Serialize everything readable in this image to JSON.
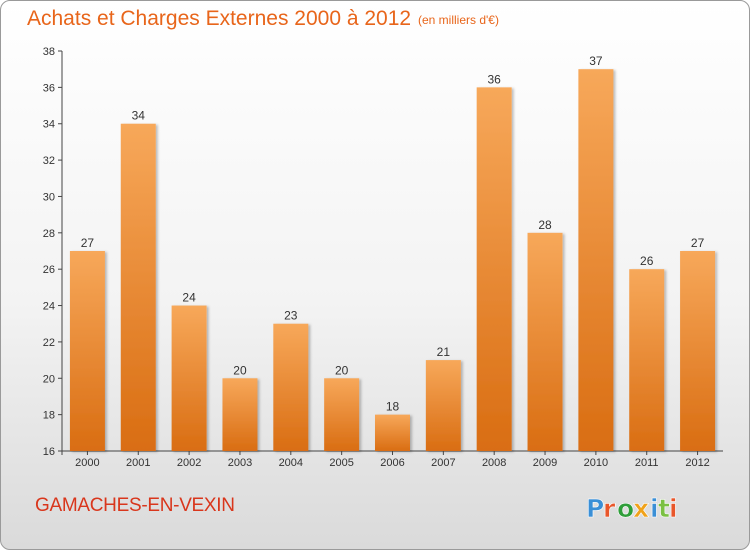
{
  "header": {
    "title": "Achats et Charges Externes 2000 à 2012",
    "unit": "(en milliers d'€)"
  },
  "footer": {
    "commune": "GAMACHES-EN-VEXIN",
    "logo_text": "Proxiti"
  },
  "colors": {
    "bar_top": "#f7a85a",
    "bar_bottom": "#d96d12",
    "title": "#e8651a",
    "commune": "#d9361c",
    "logo_letters": [
      "#3a8fd6",
      "#e8562a",
      "#2f9e3a",
      "#f0a21a",
      "#3a8fd6",
      "#7bc043",
      "#e8562a"
    ]
  },
  "chart_data": {
    "type": "bar",
    "title": "Achats et Charges Externes 2000 à 2012",
    "subtitle": "(en milliers d'€)",
    "categories": [
      "2000",
      "2001",
      "2002",
      "2003",
      "2004",
      "2005",
      "2006",
      "2007",
      "2008",
      "2009",
      "2010",
      "2011",
      "2012"
    ],
    "values": [
      27,
      34,
      24,
      20,
      23,
      20,
      18,
      21,
      36,
      28,
      37,
      26,
      27
    ],
    "ylim": [
      16,
      38
    ],
    "yticks": [
      16,
      18,
      20,
      22,
      24,
      26,
      28,
      30,
      32,
      34,
      36,
      38
    ],
    "grid": false,
    "legend": "none",
    "data_labels": true
  }
}
